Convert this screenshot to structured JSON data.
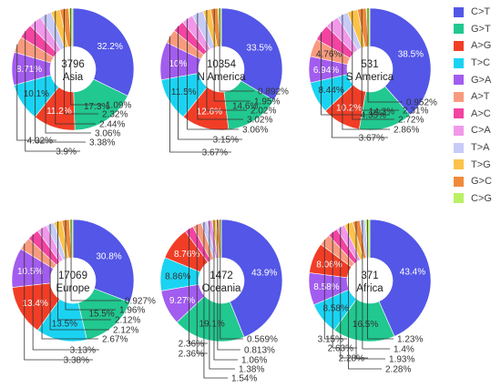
{
  "legend": [
    "C>T",
    "G>T",
    "A>G",
    "T>C",
    "G>A",
    "A>T",
    "A>C",
    "C>A",
    "T>A",
    "T>G",
    "G>C",
    "C>G"
  ],
  "colors": {
    "C>T": "#5356e6",
    "G>T": "#21c88f",
    "A>G": "#f23d26",
    "T>C": "#1ad3f2",
    "G>A": "#a25cef",
    "A>T": "#f99a7e",
    "A>C": "#f244a0",
    "C>A": "#f198ea",
    "T>A": "#c7cbf7",
    "T>G": "#fcc24a",
    "G>C": "#ef8a3c",
    "C>G": "#b9f066"
  },
  "chart_data": [
    {
      "type": "pie",
      "center_text": [
        "3796",
        "Asia"
      ],
      "labels": [
        "C>T",
        "G>T",
        "A>G",
        "T>C",
        "G>A",
        "A>T",
        "A>C",
        "C>A",
        "T>A",
        "T>G",
        "G>C",
        "C>G"
      ],
      "values": [
        32.2,
        17.3,
        11.2,
        10.1,
        8.71,
        4.32,
        3.9,
        3.38,
        3.06,
        2.44,
        2.32,
        1.09
      ],
      "text": [
        "32.2%",
        "17.3%",
        "11.2%",
        "10.1%",
        "8.71%",
        "4.32%",
        "3.9%",
        "3.38%",
        "3.06%",
        "2.44%",
        "2.32%",
        "1.09%"
      ]
    },
    {
      "type": "pie",
      "center_text": [
        "10354",
        "N America"
      ],
      "labels": [
        "C>T",
        "G>T",
        "A>G",
        "T>C",
        "G>A",
        "A>T",
        "A>C",
        "C>A",
        "T>A",
        "T>G",
        "G>C",
        "C>G"
      ],
      "values": [
        33.5,
        14.6,
        12.6,
        11.5,
        10,
        3.67,
        3.15,
        3.06,
        3.02,
        2.02,
        1.95,
        0.892
      ],
      "text": [
        "33.5%",
        "14.6%",
        "12.6%",
        "11.5%",
        "10%",
        "3.67%",
        "3.15%",
        "3.06%",
        "3.02%",
        "2.02%",
        "1.95%",
        "0.892%"
      ]
    },
    {
      "type": "pie",
      "center_text": [
        "531",
        "S America"
      ],
      "labels": [
        "C>T",
        "G>T",
        "A>G",
        "T>C",
        "G>A",
        "A>T",
        "A>C",
        "C>A",
        "T>A",
        "T>G",
        "G>C",
        "C>G"
      ],
      "values": [
        38.5,
        14.3,
        10.2,
        8.44,
        6.94,
        4.76,
        4.35,
        3.67,
        2.86,
        2.72,
        2.31,
        0.952
      ],
      "text": [
        "38.5%",
        "14.3%",
        "10.2%",
        "8.44%",
        "6.94%",
        "4.76%",
        "4.35%",
        "3.67%",
        "2.86%",
        "2.72%",
        "2.31%",
        "0.952%"
      ]
    },
    {
      "type": "pie",
      "center_text": [
        "17069",
        "Europe"
      ],
      "labels": [
        "C>T",
        "G>T",
        "T>C",
        "A>G",
        "G>A",
        "A>T",
        "A>C",
        "C>A",
        "T>A",
        "T>G",
        "G>C",
        "C>G"
      ],
      "values": [
        30.8,
        15.5,
        13.5,
        13.4,
        10.5,
        3.38,
        3.13,
        2.67,
        2.12,
        2.12,
        1.96,
        0.927
      ],
      "text": [
        "30.8%",
        "15.5%",
        "13.5%",
        "13.4%",
        "10.5%",
        "3.38%",
        "3.13%",
        "2.67%",
        "2.12%",
        "2.12%",
        "1.96%",
        "0.927%"
      ]
    },
    {
      "type": "pie",
      "center_text": [
        "1472",
        "Oceania"
      ],
      "labels": [
        "C>T",
        "G>T",
        "G>A",
        "T>C",
        "A>G",
        "A>C",
        "A>T",
        "T>A",
        "C>A",
        "T>G",
        "G>C",
        "C>G"
      ],
      "values": [
        43.9,
        19.1,
        9.27,
        8.86,
        8.76,
        2.36,
        2.36,
        1.54,
        1.38,
        1.06,
        0.813,
        0.569
      ],
      "text": [
        "43.9%",
        "19.1%",
        "9.27%",
        "8.86%",
        "8.76%",
        "2.36%",
        "2.36%",
        "1.54%",
        "1.38%",
        "1.06%",
        "0.813%",
        "0.569%"
      ]
    },
    {
      "type": "pie",
      "center_text": [
        "371",
        "Africa"
      ],
      "labels": [
        "C>T",
        "G>T",
        "T>C",
        "G>A",
        "A>G",
        "A>T",
        "A>C",
        "C>A",
        "T>G",
        "G>C",
        "T>A",
        "C>G"
      ],
      "values": [
        43.4,
        16.5,
        8.58,
        8.58,
        8.06,
        3.15,
        2.63,
        2.28,
        2.28,
        1.93,
        1.4,
        1.23
      ],
      "text": [
        "43.4%",
        "16.5%",
        "8.58%",
        "8.58%",
        "8.06%",
        "3.15%",
        "2.63%",
        "2.28%",
        "2.28%",
        "1.93%",
        "1.4%",
        "1.23%"
      ]
    }
  ]
}
